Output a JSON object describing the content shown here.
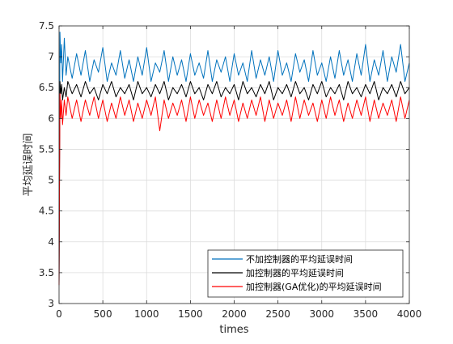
{
  "chart_data": {
    "type": "line",
    "title": "",
    "xlabel": "times",
    "ylabel": "平均延误时间",
    "xlim": [
      0,
      4000
    ],
    "ylim": [
      3,
      7.5
    ],
    "x_ticks": [
      0,
      500,
      1000,
      1500,
      2000,
      2500,
      3000,
      3500,
      4000
    ],
    "y_ticks": [
      3,
      3.5,
      4,
      4.5,
      5,
      5.5,
      6,
      6.5,
      7,
      7.5
    ],
    "x_tick_labels": [
      "0",
      "500",
      "1000",
      "1500",
      "2000",
      "2500",
      "3000",
      "3500",
      "4000"
    ],
    "y_tick_labels": [
      "3",
      "3.5",
      "4",
      "4.5",
      "5",
      "5.5",
      "6",
      "6.5",
      "7",
      "7.5"
    ],
    "grid": true,
    "legend_position": "bottom-right",
    "series": [
      {
        "name": "不加控制器的平均延误时间",
        "color": "#0072BD",
        "x": [
          0,
          10,
          20,
          30,
          40,
          60,
          80,
          100,
          150,
          200,
          250,
          300,
          350,
          400,
          450,
          500,
          550,
          600,
          650,
          700,
          750,
          800,
          850,
          900,
          950,
          1000,
          1050,
          1100,
          1150,
          1200,
          1250,
          1300,
          1350,
          1400,
          1450,
          1500,
          1550,
          1600,
          1650,
          1700,
          1750,
          1800,
          1850,
          1900,
          1950,
          2000,
          2050,
          2100,
          2150,
          2200,
          2250,
          2300,
          2350,
          2400,
          2450,
          2500,
          2550,
          2600,
          2650,
          2700,
          2750,
          2800,
          2850,
          2900,
          2950,
          3000,
          3050,
          3100,
          3150,
          3200,
          3250,
          3300,
          3350,
          3400,
          3450,
          3500,
          3550,
          3600,
          3650,
          3700,
          3750,
          3800,
          3850,
          3900,
          3950,
          4000
        ],
        "y": [
          3.3,
          7.4,
          6.9,
          7.2,
          6.6,
          7.3,
          6.7,
          7.0,
          6.65,
          7.05,
          6.7,
          7.1,
          6.6,
          6.95,
          6.75,
          7.15,
          6.6,
          6.9,
          6.7,
          7.1,
          6.65,
          6.95,
          6.6,
          7.0,
          6.7,
          7.15,
          6.6,
          6.9,
          6.75,
          7.1,
          6.6,
          7.0,
          6.7,
          6.95,
          6.6,
          7.05,
          6.7,
          6.9,
          6.65,
          7.1,
          6.6,
          6.95,
          6.75,
          7.0,
          6.6,
          7.05,
          6.7,
          6.9,
          6.6,
          7.1,
          6.65,
          6.95,
          6.7,
          7.0,
          6.6,
          7.1,
          6.7,
          6.9,
          6.6,
          7.05,
          6.75,
          6.95,
          6.6,
          7.1,
          6.7,
          6.9,
          6.6,
          7.0,
          6.65,
          7.1,
          6.7,
          6.95,
          6.6,
          7.05,
          6.7,
          7.2,
          6.6,
          6.95,
          6.7,
          7.1,
          6.6,
          7.0,
          6.75,
          7.2,
          6.6,
          6.9
        ]
      },
      {
        "name": "加控制器的平均延误时间",
        "color": "#000000",
        "x": [
          0,
          10,
          20,
          30,
          40,
          60,
          80,
          100,
          150,
          200,
          250,
          300,
          350,
          400,
          450,
          500,
          550,
          600,
          650,
          700,
          750,
          800,
          850,
          900,
          950,
          1000,
          1050,
          1100,
          1150,
          1200,
          1250,
          1300,
          1350,
          1400,
          1450,
          1500,
          1550,
          1600,
          1650,
          1700,
          1750,
          1800,
          1850,
          1900,
          1950,
          2000,
          2050,
          2100,
          2150,
          2200,
          2250,
          2300,
          2350,
          2400,
          2450,
          2500,
          2550,
          2600,
          2650,
          2700,
          2750,
          2800,
          2850,
          2900,
          2950,
          3000,
          3050,
          3100,
          3150,
          3200,
          3250,
          3300,
          3350,
          3400,
          3450,
          3500,
          3550,
          3600,
          3650,
          3700,
          3750,
          3800,
          3850,
          3900,
          3950,
          4000
        ],
        "y": [
          3.3,
          6.6,
          6.4,
          6.55,
          6.3,
          6.5,
          6.35,
          6.6,
          6.4,
          6.55,
          6.35,
          6.6,
          6.4,
          6.5,
          6.3,
          6.55,
          6.4,
          6.6,
          6.35,
          6.5,
          6.4,
          6.55,
          6.3,
          6.6,
          6.4,
          6.5,
          6.35,
          6.55,
          6.4,
          6.6,
          6.3,
          6.5,
          6.4,
          6.55,
          6.35,
          6.6,
          6.4,
          6.5,
          6.3,
          6.55,
          6.4,
          6.6,
          6.35,
          6.5,
          6.4,
          6.55,
          6.3,
          6.6,
          6.4,
          6.5,
          6.35,
          6.55,
          6.4,
          6.6,
          6.3,
          6.5,
          6.4,
          6.55,
          6.35,
          6.6,
          6.4,
          6.5,
          6.3,
          6.55,
          6.4,
          6.6,
          6.35,
          6.5,
          6.4,
          6.55,
          6.3,
          6.6,
          6.4,
          6.5,
          6.35,
          6.55,
          6.4,
          6.6,
          6.3,
          6.5,
          6.4,
          6.55,
          6.35,
          6.6,
          6.4,
          6.5
        ]
      },
      {
        "name": "加控制器(GA优化)的平均延误时间",
        "color": "#FF0000",
        "x": [
          0,
          10,
          20,
          30,
          40,
          60,
          80,
          100,
          150,
          200,
          250,
          300,
          350,
          400,
          450,
          500,
          550,
          600,
          650,
          700,
          750,
          800,
          850,
          900,
          950,
          1000,
          1050,
          1100,
          1150,
          1200,
          1250,
          1300,
          1350,
          1400,
          1450,
          1500,
          1550,
          1600,
          1650,
          1700,
          1750,
          1800,
          1850,
          1900,
          1950,
          2000,
          2050,
          2100,
          2150,
          2200,
          2250,
          2300,
          2350,
          2400,
          2450,
          2500,
          2550,
          2600,
          2650,
          2700,
          2750,
          2800,
          2850,
          2900,
          2950,
          3000,
          3050,
          3100,
          3150,
          3200,
          3250,
          3300,
          3350,
          3400,
          3450,
          3500,
          3550,
          3600,
          3650,
          3700,
          3750,
          3800,
          3850,
          3900,
          3950,
          4000
        ],
        "y": [
          3.3,
          6.4,
          6.0,
          6.3,
          5.9,
          6.3,
          6.05,
          6.35,
          6.0,
          6.3,
          5.95,
          6.3,
          6.05,
          6.35,
          6.0,
          6.3,
          5.95,
          6.25,
          6.0,
          6.35,
          6.05,
          6.3,
          5.95,
          6.25,
          6.0,
          6.3,
          6.05,
          6.35,
          5.8,
          6.3,
          6.0,
          6.25,
          6.05,
          6.3,
          5.95,
          6.35,
          6.0,
          6.3,
          6.05,
          6.25,
          5.95,
          6.3,
          6.0,
          6.35,
          6.05,
          6.3,
          5.95,
          6.25,
          6.0,
          6.3,
          6.05,
          6.35,
          5.95,
          6.3,
          6.0,
          6.25,
          6.05,
          6.3,
          5.95,
          6.35,
          6.0,
          6.3,
          6.05,
          6.25,
          5.95,
          6.3,
          6.0,
          6.35,
          6.05,
          6.3,
          5.95,
          6.25,
          6.0,
          6.3,
          6.05,
          6.35,
          5.95,
          6.3,
          6.0,
          6.25,
          6.05,
          6.3,
          5.95,
          6.35,
          6.0,
          6.3
        ]
      }
    ]
  }
}
